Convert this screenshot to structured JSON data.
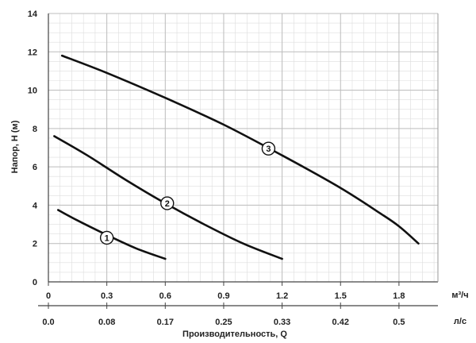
{
  "chart_data": {
    "type": "line",
    "ylabel": "Напор, H (м)",
    "xlabel": "Производительность, Q",
    "x_unit_primary": "м³/ч",
    "x_unit_secondary": "л/с",
    "ylim": [
      0,
      14
    ],
    "xlim": [
      0,
      2.0
    ],
    "y_ticks": [
      "0",
      "2",
      "4",
      "6",
      "8",
      "10",
      "12",
      "14"
    ],
    "x_ticks_primary": [
      {
        "value": 0,
        "label": "0"
      },
      {
        "value": 0.3,
        "label": "0.3"
      },
      {
        "value": 0.6,
        "label": "0.6"
      },
      {
        "value": 0.9,
        "label": "0.9"
      },
      {
        "value": 1.2,
        "label": "1.2"
      },
      {
        "value": 1.5,
        "label": "1.5"
      },
      {
        "value": 1.8,
        "label": "1.8"
      }
    ],
    "x_ticks_secondary": [
      {
        "value": 0,
        "label": "0.0"
      },
      {
        "value": 0.3,
        "label": "0.08"
      },
      {
        "value": 0.6,
        "label": "0.17"
      },
      {
        "value": 0.9,
        "label": "0.25"
      },
      {
        "value": 1.2,
        "label": "0.33"
      },
      {
        "value": 1.5,
        "label": "0.42"
      },
      {
        "value": 1.8,
        "label": "0.5"
      }
    ],
    "grid": true,
    "series": [
      {
        "name": "1",
        "label_at": {
          "x": 0.3,
          "y": 2.3
        },
        "points": [
          [
            0.05,
            3.75
          ],
          [
            0.15,
            3.2
          ],
          [
            0.3,
            2.45
          ],
          [
            0.45,
            1.75
          ],
          [
            0.6,
            1.2
          ]
        ]
      },
      {
        "name": "2",
        "label_at": {
          "x": 0.61,
          "y": 4.1
        },
        "points": [
          [
            0.03,
            7.6
          ],
          [
            0.2,
            6.6
          ],
          [
            0.4,
            5.3
          ],
          [
            0.6,
            4.1
          ],
          [
            0.8,
            3.0
          ],
          [
            1.0,
            2.0
          ],
          [
            1.2,
            1.2
          ]
        ]
      },
      {
        "name": "3",
        "label_at": {
          "x": 1.13,
          "y": 6.95
        },
        "points": [
          [
            0.07,
            11.8
          ],
          [
            0.3,
            10.9
          ],
          [
            0.6,
            9.6
          ],
          [
            0.9,
            8.2
          ],
          [
            1.2,
            6.6
          ],
          [
            1.5,
            4.9
          ],
          [
            1.7,
            3.6
          ],
          [
            1.8,
            2.9
          ],
          [
            1.9,
            2.0
          ]
        ]
      }
    ],
    "line_color": "#111111",
    "grid_color": "#bdbdbd"
  }
}
